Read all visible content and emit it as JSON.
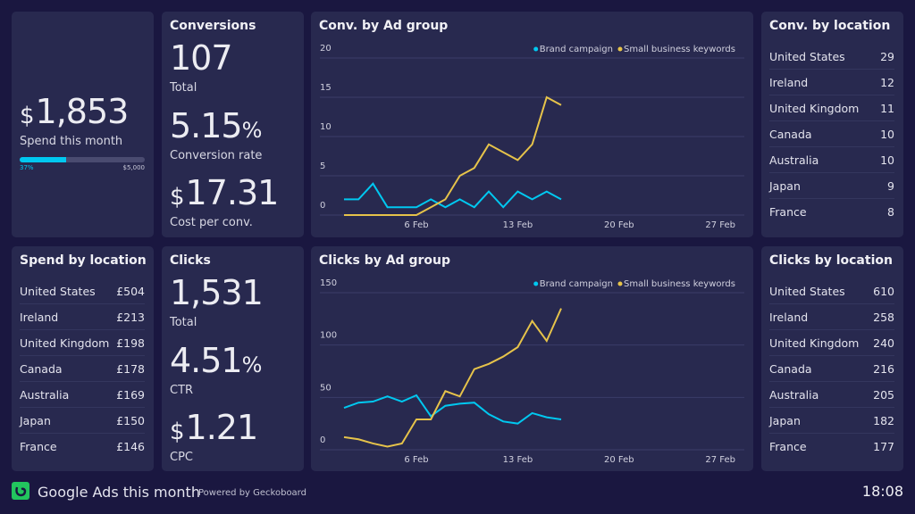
{
  "spend": {
    "value": "1,853",
    "currency": "$",
    "label": "Spend this month",
    "progress_percent": 37,
    "progress_label": "37%",
    "target_label": "$5,000",
    "accent": "#00c8f0"
  },
  "conversions": {
    "title": "Conversions",
    "total": "107",
    "total_label": "Total",
    "rate": "5.15",
    "rate_unit": "%",
    "rate_label": "Conversion rate",
    "cost": "17.31",
    "cost_currency": "$",
    "cost_label": "Cost per conv."
  },
  "clicks": {
    "title": "Clicks",
    "total": "1,531",
    "total_label": "Total",
    "ctr": "4.51",
    "ctr_unit": "%",
    "ctr_label": "CTR",
    "cpc": "1.21",
    "cpc_currency": "$",
    "cpc_label": "CPC"
  },
  "conv_by_location": {
    "title": "Conv. by location",
    "rows": [
      [
        "United States",
        "29"
      ],
      [
        "Ireland",
        "12"
      ],
      [
        "United Kingdom",
        "11"
      ],
      [
        "Canada",
        "10"
      ],
      [
        "Australia",
        "10"
      ],
      [
        "Japan",
        "9"
      ],
      [
        "France",
        "8"
      ]
    ]
  },
  "spend_by_location": {
    "title": "Spend by location",
    "rows": [
      [
        "United States",
        "£504"
      ],
      [
        "Ireland",
        "£213"
      ],
      [
        "United Kingdom",
        "£198"
      ],
      [
        "Canada",
        "£178"
      ],
      [
        "Australia",
        "£169"
      ],
      [
        "Japan",
        "£150"
      ],
      [
        "France",
        "£146"
      ]
    ]
  },
  "clicks_by_location": {
    "title": "Clicks by location",
    "rows": [
      [
        "United States",
        "610"
      ],
      [
        "Ireland",
        "258"
      ],
      [
        "United Kingdom",
        "240"
      ],
      [
        "Canada",
        "216"
      ],
      [
        "Australia",
        "205"
      ],
      [
        "Japan",
        "182"
      ],
      [
        "France",
        "177"
      ]
    ]
  },
  "chart_data": [
    {
      "type": "line",
      "title": "Conv. by Ad group",
      "x": [
        1,
        2,
        3,
        4,
        5,
        6,
        7,
        8,
        9,
        10,
        11,
        12,
        13,
        14,
        15,
        16
      ],
      "x_unit": "Feb",
      "xticks": [
        "6 Feb",
        "13 Feb",
        "20 Feb",
        "27 Feb"
      ],
      "yticks": [
        "0",
        "5",
        "10",
        "15",
        "20"
      ],
      "ylim": [
        0,
        20
      ],
      "grid": true,
      "legend": "top-right",
      "series": [
        {
          "name": "Brand campaign",
          "color": "#00c8f0",
          "values": [
            2,
            2,
            4,
            1,
            1,
            1,
            2,
            1,
            2,
            1,
            3,
            1,
            3,
            2,
            3,
            2
          ]
        },
        {
          "name": "Small business keywords",
          "color": "#e6c34a",
          "values": [
            0,
            0,
            0,
            0,
            0,
            0,
            1,
            2,
            5,
            6,
            9,
            8,
            7,
            9,
            15,
            14
          ]
        }
      ]
    },
    {
      "type": "line",
      "title": "Clicks by Ad group",
      "x": [
        1,
        2,
        3,
        4,
        5,
        6,
        7,
        8,
        9,
        10,
        11,
        12,
        13,
        14,
        15,
        16
      ],
      "x_unit": "Feb",
      "xticks": [
        "6 Feb",
        "13 Feb",
        "20 Feb",
        "27 Feb"
      ],
      "yticks": [
        "0",
        "50",
        "100",
        "150"
      ],
      "ylim": [
        0,
        150
      ],
      "grid": true,
      "legend": "top-right",
      "series": [
        {
          "name": "Brand campaign",
          "color": "#00c8f0",
          "values": [
            40,
            45,
            46,
            51,
            46,
            52,
            32,
            42,
            44,
            45,
            34,
            27,
            25,
            35,
            31,
            29
          ]
        },
        {
          "name": "Small business keywords",
          "color": "#e6c34a",
          "values": [
            12,
            10,
            6,
            3,
            6,
            29,
            29,
            56,
            51,
            77,
            82,
            89,
            98,
            123,
            104,
            135
          ]
        }
      ]
    }
  ],
  "footer": {
    "title": "Google Ads this month",
    "powered": "Powered by Geckoboard",
    "time": "18:08",
    "logo_color": "#22c55e"
  }
}
